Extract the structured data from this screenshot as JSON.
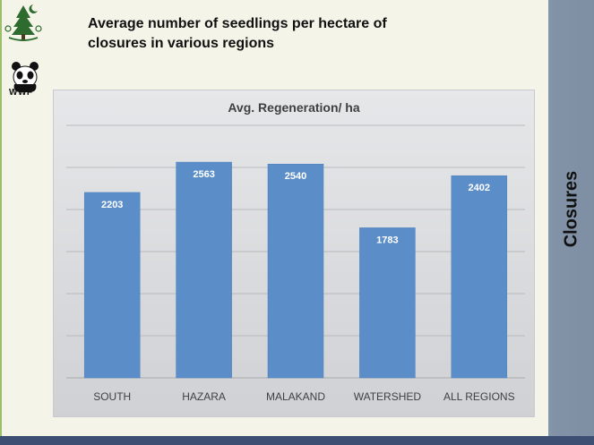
{
  "slide": {
    "title_line1": "Average number of seedlings per hectare of",
    "title_line2": "closures in various regions",
    "side_title": "Closures",
    "wwf_label": "WWF"
  },
  "colors": {
    "bar": "#5b8ec9",
    "bar_edge": "#4d7fba",
    "side_band": "#8293a7",
    "bottom_rule": "#3d4f73",
    "left_rule": "#9bbf6a",
    "gridline": "#b8b9bc"
  },
  "icons": [
    "emblem-icon",
    "panda-icon"
  ],
  "chart_data": {
    "type": "bar",
    "title": "Avg. Regeneration/ ha",
    "categories": [
      "SOUTH",
      "HAZARA",
      "MALAKAND",
      "WATERSHED",
      "ALL REGIONS"
    ],
    "values": [
      2203,
      2563,
      2540,
      1783,
      2402
    ],
    "data_labels": [
      "2203",
      "2563",
      "2540",
      "1783",
      "2402"
    ],
    "xlabel": "",
    "ylabel": "",
    "ylim": [
      0,
      3000
    ],
    "y_gridlines": [
      500,
      1000,
      1500,
      2000,
      2500,
      3000
    ],
    "grid": true,
    "legend": "none"
  }
}
